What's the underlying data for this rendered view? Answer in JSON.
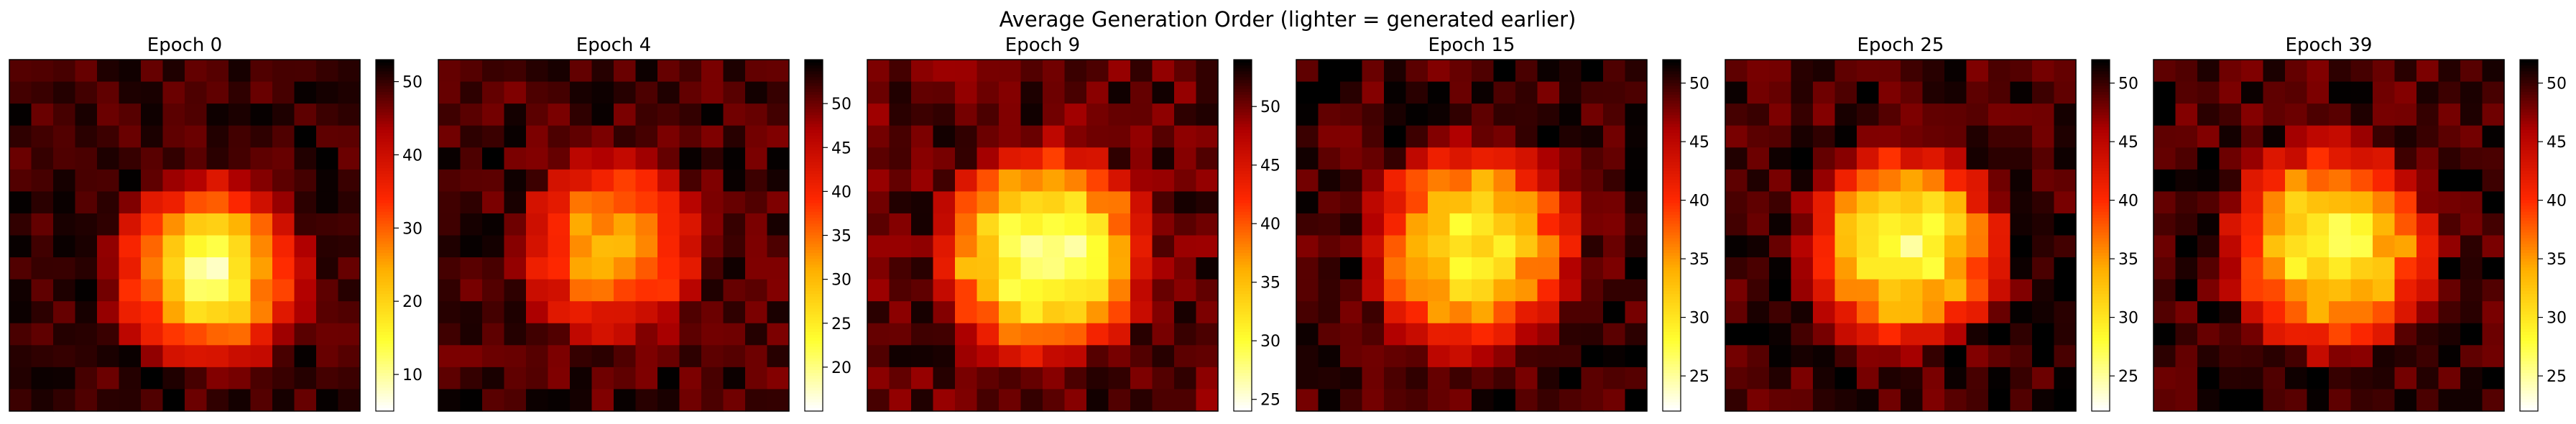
{
  "figure_title": "Average Generation Order (lighter = generated earlier)",
  "colormap": [
    "#ffffff",
    "#ffff30",
    "#ffb000",
    "#ff2800",
    "#b00000",
    "#000000"
  ],
  "chart_data": [
    {
      "type": "heatmap",
      "title": "Epoch 0",
      "grid_size": [
        16,
        16
      ],
      "color_range": [
        5,
        53
      ],
      "colorbar_ticks": [
        10,
        20,
        30,
        40,
        50
      ],
      "base_profile": {
        "center_value": 8,
        "edge_value": 50,
        "center_x": 8.6,
        "center_y": 9.2,
        "spread": 5.2,
        "power": 1.2,
        "noise": 3,
        "seed": 11
      }
    },
    {
      "type": "heatmap",
      "title": "Epoch 4",
      "grid_size": [
        16,
        16
      ],
      "color_range": [
        15,
        55
      ],
      "colorbar_ticks": [
        20,
        25,
        30,
        35,
        40,
        45,
        50
      ],
      "base_profile": {
        "center_value": 30,
        "edge_value": 52,
        "center_x": 7.5,
        "center_y": 8.0,
        "spread": 5.0,
        "power": 1.6,
        "noise": 3,
        "seed": 23
      }
    },
    {
      "type": "heatmap",
      "title": "Epoch 9",
      "grid_size": [
        16,
        16
      ],
      "color_range": [
        24,
        54
      ],
      "colorbar_ticks": [
        25,
        30,
        35,
        40,
        45,
        50
      ],
      "base_profile": {
        "center_value": 27,
        "edge_value": 51,
        "center_x": 7.5,
        "center_y": 8.3,
        "spread": 5.6,
        "power": 1.9,
        "noise": 2.5,
        "seed": 37
      }
    },
    {
      "type": "heatmap",
      "title": "Epoch 15",
      "grid_size": [
        16,
        16
      ],
      "color_range": [
        22,
        52
      ],
      "colorbar_ticks": [
        25,
        30,
        35,
        40,
        45,
        50
      ],
      "base_profile": {
        "center_value": 29,
        "edge_value": 50,
        "center_x": 7.5,
        "center_y": 8.0,
        "spread": 5.6,
        "power": 1.9,
        "noise": 2.5,
        "seed": 41
      }
    },
    {
      "type": "heatmap",
      "title": "Epoch 25",
      "grid_size": [
        16,
        16
      ],
      "color_range": [
        22,
        52
      ],
      "colorbar_ticks": [
        25,
        30,
        35,
        40,
        45,
        50
      ],
      "base_profile": {
        "center_value": 27,
        "edge_value": 50,
        "center_x": 7.7,
        "center_y": 8.0,
        "spread": 5.3,
        "power": 1.8,
        "noise": 2.5,
        "seed": 53
      }
    },
    {
      "type": "heatmap",
      "title": "Epoch 39",
      "grid_size": [
        16,
        16
      ],
      "color_range": [
        22,
        52
      ],
      "colorbar_ticks": [
        25,
        30,
        35,
        40,
        45,
        50
      ],
      "base_profile": {
        "center_value": 28,
        "edge_value": 50,
        "center_x": 7.6,
        "center_y": 8.0,
        "spread": 5.5,
        "power": 1.9,
        "noise": 2.5,
        "seed": 67
      }
    }
  ]
}
